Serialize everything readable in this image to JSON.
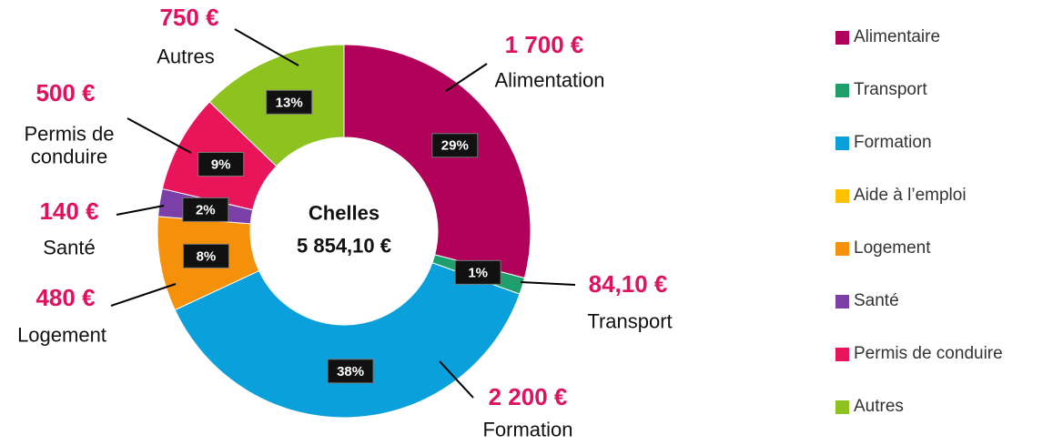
{
  "chart_data": {
    "type": "donut",
    "center_title": "Chelles",
    "total": 5854.1,
    "total_label": "5 854,10 €",
    "categories": [
      "Alimentaire",
      "Transport",
      "Formation",
      "Aide à l’emploi",
      "Logement",
      "Santé",
      "Permis de conduire",
      "Autres"
    ],
    "callout_labels": [
      "Alimentation",
      "Transport",
      "Formation",
      null,
      "Logement",
      "Santé",
      "Permis de\nconduire",
      "Autres"
    ],
    "values": [
      1700,
      84.1,
      2200,
      0,
      480,
      140,
      500,
      750
    ],
    "value_labels": [
      "1 700 €",
      "84,10 €",
      "2 200 €",
      null,
      "480 €",
      "140 €",
      "500 €",
      "750 €"
    ],
    "percents": [
      29,
      1,
      38,
      0,
      8,
      2,
      9,
      13
    ],
    "percent_labels": [
      "29%",
      "1%",
      "38%",
      null,
      "8%",
      "2%",
      "9%",
      "13%"
    ],
    "colors": [
      "#b0005a",
      "#1e9e6a",
      "#0aa0dc",
      "#ffc000",
      "#f5900a",
      "#7b3fa8",
      "#e8155a",
      "#8dc21f"
    ]
  }
}
